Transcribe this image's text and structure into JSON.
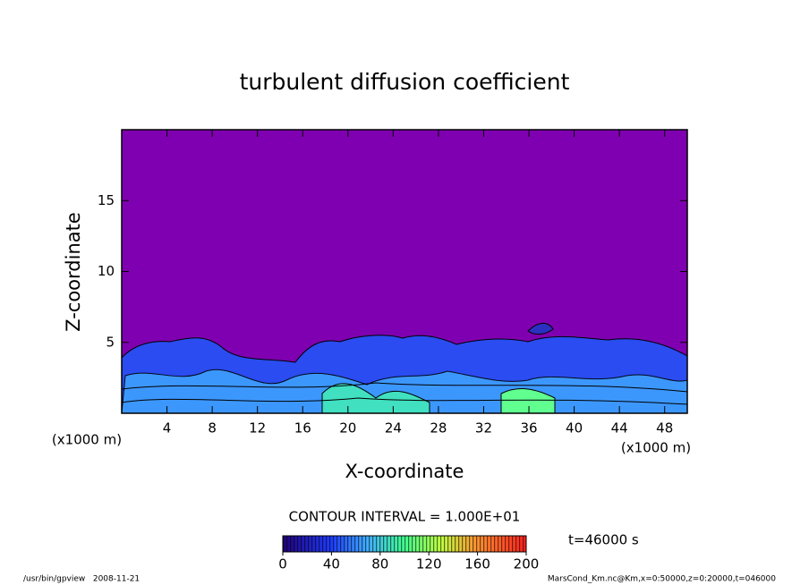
{
  "chart_data": {
    "type": "contour",
    "title": "turbulent diffusion coefficient",
    "x_label": "X-coordinate",
    "y_label": "Z-coordinate",
    "x_unit": "(x1000 m)",
    "y_unit": "(x1000 m)",
    "xlim": [
      0,
      50
    ],
    "xticks": [
      4,
      8,
      12,
      16,
      20,
      24,
      28,
      32,
      36,
      40,
      44,
      48
    ],
    "ylim": [
      0,
      20
    ],
    "yticks": [
      5,
      10,
      15
    ],
    "background_color": "#7f00b0",
    "colorbar": {
      "title": "CONTOUR INTERVAL = 1.000E+01",
      "lim": [
        0,
        200
      ],
      "ticks": [
        0,
        40,
        80,
        120,
        160,
        200
      ]
    },
    "annotation": "t=46000 s",
    "footer_left": "/usr/bin/gpview   2008-11-21",
    "footer_right": "MarsCond_Km.nc@Km,x=0:50000,z=0:20000,t=046000"
  }
}
